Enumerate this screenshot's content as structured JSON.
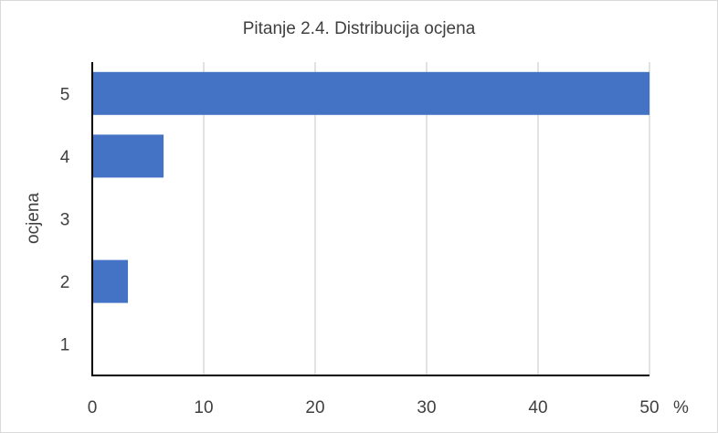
{
  "chart_data": {
    "type": "bar",
    "orientation": "horizontal",
    "title": "Pitanje 2.4. Distribucija ocjena",
    "xlabel": "%",
    "ylabel": "ocjena",
    "categories": [
      "1",
      "2",
      "3",
      "4",
      "5"
    ],
    "values": [
      0,
      3.2,
      0,
      6.4,
      50
    ],
    "xlim": [
      0,
      50
    ],
    "xticks": [
      "0",
      "10",
      "20",
      "30",
      "40",
      "50"
    ],
    "grid": true,
    "bar_color": "#4472c4",
    "grid_color": "#d9d9d9",
    "axis_color": "#000000"
  }
}
